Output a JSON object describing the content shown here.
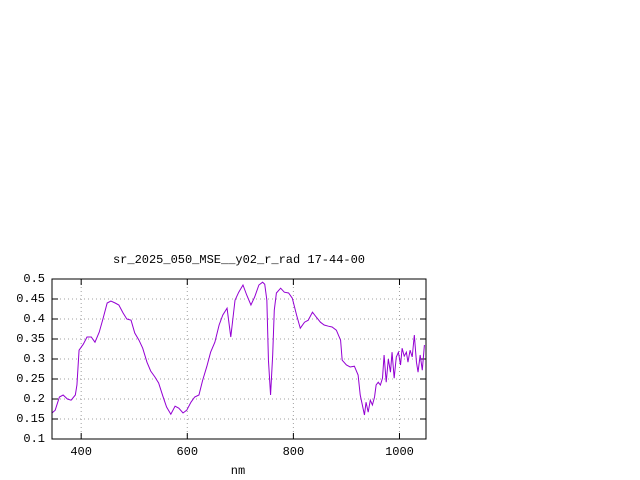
{
  "chart_data": {
    "type": "line",
    "title": "sr_2025_050_MSE__y02_r_rad 17-44-00",
    "x_label": "nm",
    "x": [
      345,
      351,
      359,
      366,
      374,
      381,
      389,
      392,
      396,
      404,
      411,
      419,
      426,
      434,
      441,
      449,
      456,
      464,
      471,
      479,
      486,
      494,
      501,
      509,
      516,
      524,
      531,
      539,
      546,
      554,
      561,
      569,
      577,
      584,
      592,
      599,
      607,
      614,
      622,
      629,
      637,
      644,
      652,
      660,
      667,
      675,
      682,
      690,
      697,
      705,
      712,
      720,
      727,
      735,
      742,
      746,
      750,
      753,
      757,
      761,
      764,
      768,
      776,
      783,
      791,
      798,
      806,
      813,
      821,
      828,
      836,
      843,
      851,
      858,
      866,
      873,
      881,
      889,
      892,
      900,
      907,
      915,
      922,
      926,
      930,
      934,
      937,
      941,
      945,
      949,
      953,
      956,
      960,
      964,
      968,
      971,
      975,
      979,
      983,
      986,
      990,
      994,
      998,
      1002,
      1005,
      1009,
      1013,
      1016,
      1020,
      1024,
      1028,
      1032,
      1035,
      1039,
      1043,
      1047
    ],
    "series": [
      {
        "name": "sr_2025_050_MSE__y02_r_rad",
        "color": "#9400d3",
        "values": [
          0.165,
          0.172,
          0.205,
          0.21,
          0.2,
          0.197,
          0.21,
          0.235,
          0.322,
          0.337,
          0.355,
          0.355,
          0.342,
          0.367,
          0.4,
          0.44,
          0.445,
          0.44,
          0.435,
          0.415,
          0.4,
          0.397,
          0.365,
          0.347,
          0.327,
          0.292,
          0.27,
          0.255,
          0.24,
          0.207,
          0.18,
          0.162,
          0.182,
          0.177,
          0.165,
          0.172,
          0.192,
          0.205,
          0.21,
          0.247,
          0.282,
          0.317,
          0.342,
          0.385,
          0.41,
          0.427,
          0.355,
          0.447,
          0.467,
          0.485,
          0.46,
          0.435,
          0.455,
          0.485,
          0.492,
          0.487,
          0.447,
          0.297,
          0.21,
          0.31,
          0.422,
          0.465,
          0.477,
          0.467,
          0.465,
          0.452,
          0.41,
          0.377,
          0.392,
          0.397,
          0.417,
          0.405,
          0.392,
          0.385,
          0.382,
          0.38,
          0.372,
          0.347,
          0.297,
          0.285,
          0.28,
          0.282,
          0.26,
          0.21,
          0.185,
          0.16,
          0.192,
          0.167,
          0.197,
          0.185,
          0.205,
          0.235,
          0.242,
          0.235,
          0.252,
          0.31,
          0.242,
          0.3,
          0.267,
          0.317,
          0.252,
          0.305,
          0.317,
          0.285,
          0.327,
          0.307,
          0.317,
          0.292,
          0.322,
          0.305,
          0.36,
          0.292,
          0.267,
          0.31,
          0.272,
          0.335
        ]
      }
    ],
    "xlim": [
      345,
      1050
    ],
    "xticks": [
      400,
      600,
      800,
      1000
    ],
    "ylim": [
      0.1,
      0.5
    ],
    "yticks": [
      0.1,
      0.15,
      0.2,
      0.25,
      0.3,
      0.35,
      0.4,
      0.45,
      0.5
    ],
    "grid": true
  }
}
